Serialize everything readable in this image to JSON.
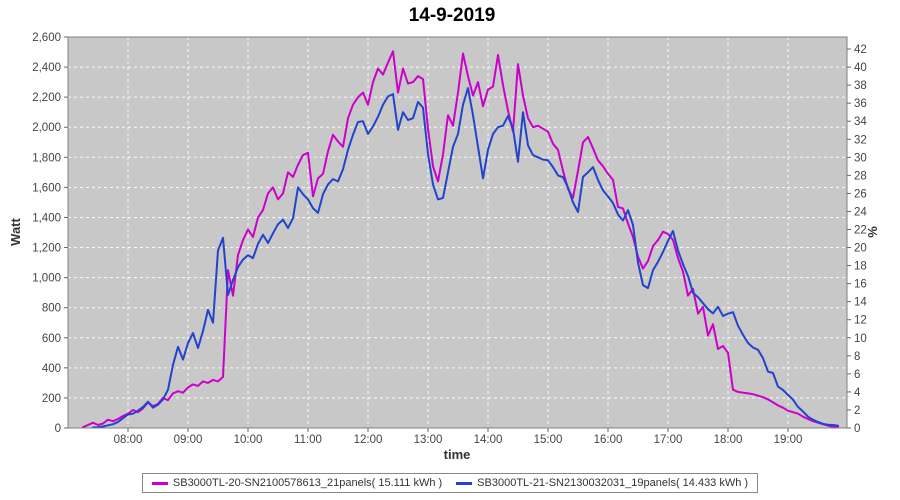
{
  "title": "14-9-2019",
  "axes": {
    "left_title": "Watt",
    "right_title": "%",
    "bottom_title": "time"
  },
  "colors": {
    "series1": "#CC00CC",
    "series2": "#2244CC",
    "plot_background": "#C8C8C8",
    "grid": "#FFFFFF",
    "frame": "#808080"
  },
  "legend": {
    "item1": "SB3000TL-20-SN2100578613_21panels( 15.111 kWh )",
    "item2": "SB3000TL-21-SN2130032031_19panels( 14.433 kWh )"
  },
  "chart_data": {
    "type": "line",
    "title": "14-9-2019",
    "xlabel": "time",
    "ylabel": "Watt",
    "ylabel_right": "%",
    "grid": true,
    "legend_position": "bottom",
    "x_axis": {
      "tick_labels": [
        "08:00",
        "09:00",
        "10:00",
        "11:00",
        "12:00",
        "13:00",
        "14:00",
        "15:00",
        "16:00",
        "17:00",
        "18:00",
        "19:00"
      ],
      "range_hours": [
        7.0,
        19.98
      ]
    },
    "y_axis_left": {
      "min": 0,
      "max": 2600,
      "tick_step": 200
    },
    "y_axis_right": {
      "min": 0,
      "max": 42,
      "tick_step": 2,
      "watts_per_percent": 60
    },
    "sampling": {
      "start_time": "07:15",
      "step_minutes": 5
    },
    "series": [
      {
        "name": "SB3000TL-20-SN2100578613_21panels( 15.111 kWh )",
        "color": "#CC00CC",
        "energy_kwh": "15.111",
        "unit": "W",
        "values": [
          5,
          20,
          35,
          20,
          30,
          55,
          45,
          60,
          80,
          95,
          120,
          105,
          130,
          170,
          145,
          160,
          200,
          185,
          230,
          245,
          235,
          270,
          290,
          280,
          310,
          300,
          320,
          310,
          340,
          1050,
          880,
          1150,
          1250,
          1320,
          1270,
          1400,
          1450,
          1560,
          1600,
          1520,
          1560,
          1700,
          1670,
          1750,
          1815,
          1830,
          1540,
          1660,
          1690,
          1840,
          1950,
          1905,
          1870,
          2060,
          2150,
          2200,
          2230,
          2150,
          2300,
          2390,
          2350,
          2430,
          2505,
          2230,
          2390,
          2290,
          2300,
          2340,
          2320,
          1990,
          1740,
          1640,
          1820,
          2080,
          2010,
          2230,
          2490,
          2340,
          2210,
          2300,
          2140,
          2250,
          2270,
          2480,
          2280,
          2110,
          1970,
          2420,
          2210,
          2060,
          2000,
          2010,
          1990,
          1970,
          1890,
          1850,
          1710,
          1590,
          1530,
          1710,
          1900,
          1935,
          1860,
          1780,
          1740,
          1690,
          1650,
          1470,
          1460,
          1360,
          1270,
          1140,
          1060,
          1110,
          1210,
          1250,
          1305,
          1290,
          1250,
          1130,
          1040,
          880,
          925,
          760,
          805,
          615,
          690,
          525,
          545,
          500,
          255,
          240,
          235,
          230,
          225,
          215,
          205,
          190,
          170,
          150,
          135,
          115,
          105,
          95,
          75,
          60,
          45,
          35,
          25,
          15,
          8,
          5
        ]
      },
      {
        "name": "SB3000TL-21-SN2130032031_19panels( 14.433 kWh )",
        "color": "#2244CC",
        "energy_kwh": "14.433",
        "unit": "W",
        "values": [
          null,
          null,
          3,
          5,
          10,
          18,
          25,
          40,
          65,
          90,
          95,
          115,
          140,
          175,
          135,
          155,
          190,
          255,
          420,
          540,
          455,
          565,
          632,
          532,
          645,
          785,
          700,
          1180,
          1265,
          885,
          985,
          1070,
          1120,
          1150,
          1130,
          1225,
          1285,
          1230,
          1295,
          1355,
          1385,
          1330,
          1395,
          1600,
          1555,
          1520,
          1462,
          1430,
          1555,
          1620,
          1655,
          1640,
          1720,
          1850,
          1950,
          2035,
          2040,
          1955,
          2005,
          2070,
          2150,
          2205,
          2220,
          1982,
          2100,
          2048,
          2060,
          2168,
          2130,
          1822,
          1620,
          1520,
          1530,
          1700,
          1870,
          1955,
          2150,
          2260,
          2080,
          1870,
          1660,
          1850,
          1955,
          2000,
          2010,
          2075,
          1990,
          1770,
          2100,
          1880,
          1815,
          1800,
          1785,
          1780,
          1735,
          1680,
          1668,
          1600,
          1500,
          1436,
          1670,
          1700,
          1735,
          1650,
          1580,
          1540,
          1496,
          1420,
          1380,
          1448,
          1350,
          1100,
          950,
          930,
          1050,
          1105,
          1170,
          1245,
          1310,
          1180,
          1090,
          1010,
          900,
          870,
          830,
          790,
          762,
          806,
          745,
          760,
          770,
          680,
          620,
          565,
          535,
          520,
          465,
          375,
          366,
          275,
          253,
          220,
          188,
          140,
          110,
          75,
          55,
          40,
          28,
          22,
          20,
          15
        ]
      }
    ]
  }
}
